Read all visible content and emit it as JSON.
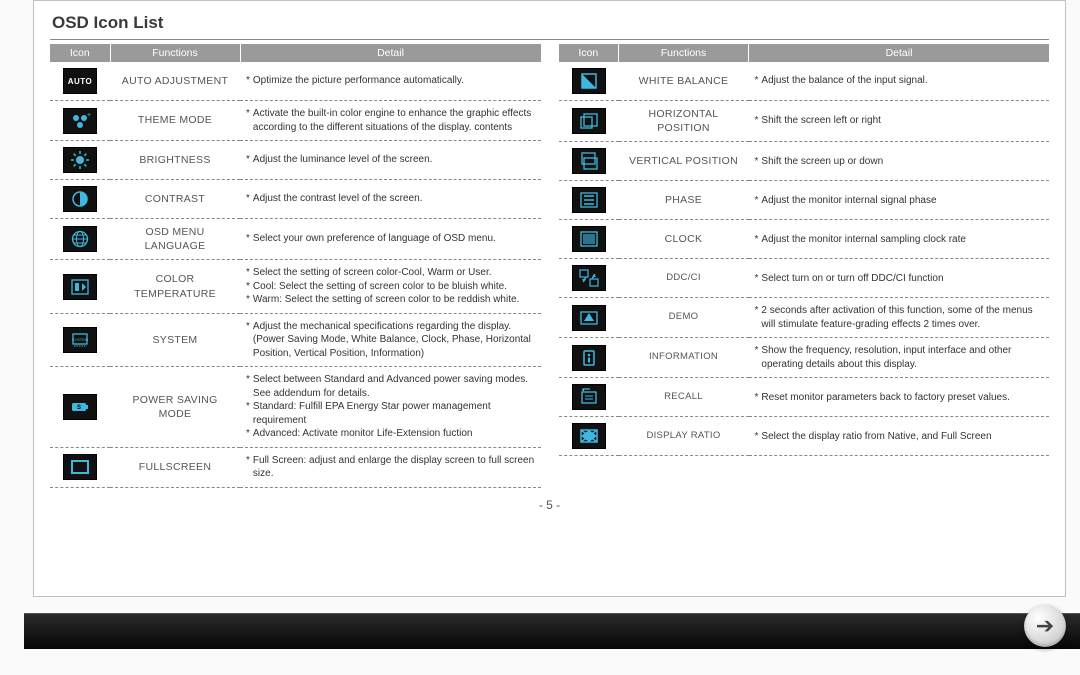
{
  "title": "OSD Icon List",
  "page_number": "- 5 -",
  "headers": {
    "icon": "Icon",
    "functions": "Functions",
    "detail": "Detail"
  },
  "colors": {
    "icon_bg": "#111111",
    "icon_fg": "#3fb8df",
    "header_bg": "#9a9a9a",
    "header_fg": "#ffffff",
    "border_dash": "#888888"
  },
  "left": [
    {
      "icon": "auto",
      "func": "Auto Adjustment",
      "details": [
        "Optimize the picture performance automatically."
      ]
    },
    {
      "icon": "theme",
      "func": "Theme Mode",
      "details": [
        "Activate the built-in color engine to enhance the graphic effects according to the different situations of the display. contents"
      ]
    },
    {
      "icon": "brightness",
      "func": "Brightness",
      "details": [
        "Adjust the luminance level of the screen."
      ]
    },
    {
      "icon": "contrast",
      "func": "Contrast",
      "details": [
        "Adjust the contrast level of the screen."
      ]
    },
    {
      "icon": "language",
      "func": "Osd Menu Language",
      "details": [
        "Select your own preference of language of OSD menu."
      ]
    },
    {
      "icon": "colortemp",
      "func": "Color Temperature",
      "details": [
        "Select the setting of screen color-Cool, Warm or User.",
        "Cool: Select the setting of screen color to be bluish white.",
        "Warm: Select the setting of screen color to be reddish white."
      ]
    },
    {
      "icon": "system",
      "func": "System",
      "details": [
        "Adjust the mechanical specifications regarding the display.(Power Saving Mode, White Balance, Clock, Phase, Horizontal Position, Vertical Position, Information)"
      ]
    },
    {
      "icon": "power",
      "func": "Power Saving Mode",
      "details": [
        "Select between Standard and Advanced power saving modes.\nSee addendum for details.",
        "Standard: Fulfill EPA Energy Star power management requirement",
        "Advanced: Activate monitor Life-Extension fuction"
      ]
    },
    {
      "icon": "fullscreen",
      "func": "Fullscreen",
      "details": [
        "Full Screen: adjust and enlarge the display screen to full screen size."
      ]
    }
  ],
  "right": [
    {
      "icon": "whitebalance",
      "func": "White Balance",
      "details": [
        "Adjust the balance of the input signal."
      ]
    },
    {
      "icon": "hpos",
      "func": "Horizontal Position",
      "details": [
        "Shift the screen left or right"
      ]
    },
    {
      "icon": "vpos",
      "func": "Vertical Position",
      "details": [
        "Shift the screen up or down"
      ]
    },
    {
      "icon": "phase",
      "func": "Phase",
      "details": [
        "Adjust the monitor internal signal phase"
      ]
    },
    {
      "icon": "clock",
      "func": "Clock",
      "details": [
        "Adjust the monitor internal sampling clock rate"
      ]
    },
    {
      "icon": "ddcci",
      "func": "DDC/CI",
      "small": true,
      "details": [
        "Select turn on or turn off DDC/CI function"
      ]
    },
    {
      "icon": "demo",
      "func": "Demo",
      "small": true,
      "details": [
        "2 seconds after activation of this function, some of the menus will stimulate feature-grading effects 2 times over."
      ]
    },
    {
      "icon": "info",
      "func": "Information",
      "small": true,
      "details": [
        "Show the frequency, resolution, input interface and other operating details about this display."
      ]
    },
    {
      "icon": "recall",
      "func": "Recall",
      "small": true,
      "details": [
        "Reset monitor parameters back to factory preset values."
      ]
    },
    {
      "icon": "ratio",
      "func": "Display Ratio",
      "small": true,
      "details": [
        "Select the display ratio from Native, and Full Screen"
      ]
    }
  ]
}
